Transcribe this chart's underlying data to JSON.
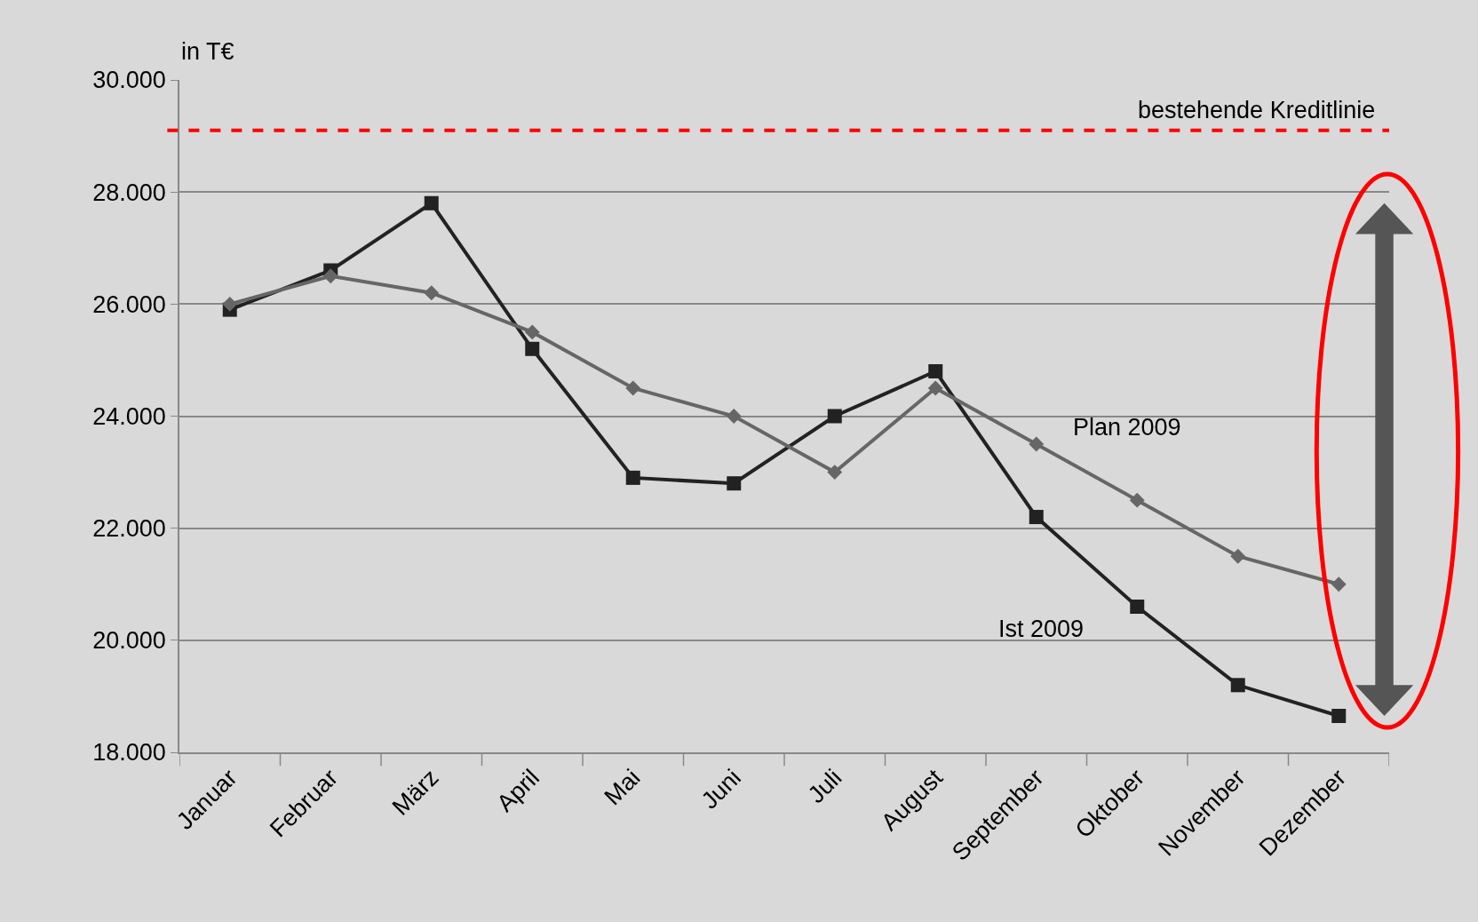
{
  "chart_data": {
    "type": "line",
    "ylabel": "in T€",
    "categories": [
      "Januar",
      "Februar",
      "März",
      "April",
      "Mai",
      "Juni",
      "Juli",
      "August",
      "September",
      "Oktober",
      "November",
      "Dezember"
    ],
    "series": [
      {
        "name": "Ist 2009",
        "color": "#222222",
        "marker": "square",
        "values": [
          25900,
          26600,
          27800,
          25200,
          22900,
          22800,
          24000,
          24800,
          22200,
          20600,
          19200,
          18650
        ]
      },
      {
        "name": "Plan 2009",
        "color": "#666666",
        "marker": "diamond",
        "values": [
          26000,
          26500,
          26200,
          25500,
          24500,
          24000,
          23000,
          24500,
          23500,
          22500,
          21500,
          21000
        ]
      }
    ],
    "ylim": [
      18000,
      30000
    ],
    "yticks": [
      {
        "value": 18000,
        "label": "18.000"
      },
      {
        "value": 20000,
        "label": "20.000"
      },
      {
        "value": 22000,
        "label": "22.000"
      },
      {
        "value": 24000,
        "label": "24.000"
      },
      {
        "value": 26000,
        "label": "26.000"
      },
      {
        "value": 28000,
        "label": "28.000"
      },
      {
        "value": 30000,
        "label": "30.000"
      }
    ],
    "ref_lines": [
      {
        "axis": "y",
        "value": 29100,
        "label": "bestehende Kreditlinie",
        "color": "#ff0000",
        "line_style": "dashed"
      }
    ],
    "grid": "y",
    "legend": false,
    "line_style": "solid"
  }
}
